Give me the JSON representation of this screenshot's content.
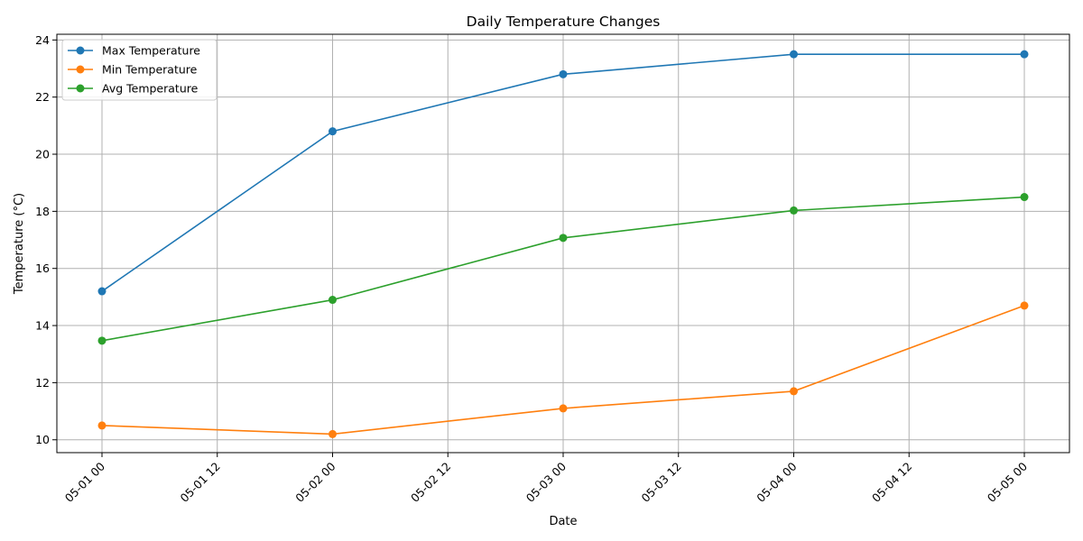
{
  "chart_data": {
    "type": "line",
    "title": "Daily Temperature Changes",
    "xlabel": "Date",
    "ylabel": "Temperature (°C)",
    "x": [
      "2024-05-01",
      "2024-05-02",
      "2024-05-03",
      "2024-05-04",
      "2024-05-05"
    ],
    "x_ticks": [
      "05-01 00",
      "05-01 12",
      "05-02 00",
      "05-02 12",
      "05-03 00",
      "05-03 12",
      "05-04 00",
      "05-04 12",
      "05-05 00"
    ],
    "y_ticks": [
      10,
      12,
      14,
      16,
      18,
      20,
      22,
      24
    ],
    "ylim": [
      9.55,
      24.2
    ],
    "grid": true,
    "legend_position": "top-left",
    "series": [
      {
        "name": "Max Temperature",
        "color": "#1f77b4",
        "values": [
          15.2,
          20.8,
          22.8,
          23.5,
          23.5
        ]
      },
      {
        "name": "Min Temperature",
        "color": "#ff7f0e",
        "values": [
          10.5,
          10.2,
          11.1,
          11.7,
          14.7
        ]
      },
      {
        "name": "Avg Temperature",
        "color": "#2ca02c",
        "values": [
          13.47,
          14.9,
          17.07,
          18.03,
          18.5
        ]
      }
    ]
  }
}
